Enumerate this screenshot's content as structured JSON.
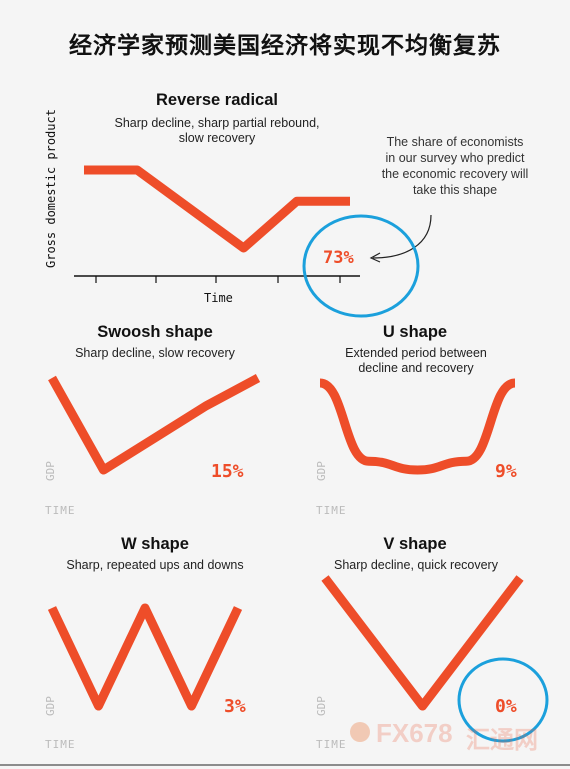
{
  "title": "经济学家预测美国经济将实现不均衡复苏",
  "colors": {
    "line": "#ee4d29",
    "highlight_circle": "#1ba0dc",
    "axis": "#111111"
  },
  "main_chart": {
    "ylabel": "Gross domestic product",
    "xlabel": "Time",
    "annotation": "The share of economists in our survey who predict the economic recovery will take this shape"
  },
  "chart_data": [
    {
      "type": "line",
      "title": "Reverse radical",
      "subtitle": "Sharp decline, sharp partial rebound, slow recovery",
      "share_percent": 73,
      "share_label": "73%",
      "highlighted": true,
      "x": [
        0,
        1,
        2,
        3,
        4,
        5
      ],
      "values": [
        100,
        100,
        90,
        80,
        92,
        92
      ]
    },
    {
      "type": "line",
      "title": "Swoosh shape",
      "subtitle": "Sharp decline, slow recovery",
      "share_percent": 15,
      "share_label": "15%",
      "x": [
        0,
        1,
        2,
        3,
        4
      ],
      "values": [
        100,
        80,
        87,
        94,
        100
      ],
      "xlabel": "TIME",
      "ylabel": "GDP"
    },
    {
      "type": "line",
      "title": "U shape",
      "subtitle": "Extended period between decline and recovery",
      "share_percent": 9,
      "share_label": "9%",
      "x": [
        0,
        1,
        2,
        3,
        4
      ],
      "values": [
        100,
        82,
        80,
        82,
        100
      ],
      "xlabel": "TIME",
      "ylabel": "GDP"
    },
    {
      "type": "line",
      "title": "W shape",
      "subtitle": "Sharp, repeated ups and downs",
      "share_percent": 3,
      "share_label": "3%",
      "x": [
        0,
        1,
        2,
        3,
        4
      ],
      "values": [
        100,
        80,
        100,
        80,
        100
      ],
      "xlabel": "TIME",
      "ylabel": "GDP"
    },
    {
      "type": "line",
      "title": "V shape",
      "subtitle": "Sharp decline, quick recovery",
      "share_percent": 0,
      "share_label": "0%",
      "highlighted": true,
      "x": [
        0,
        1,
        2
      ],
      "values": [
        100,
        80,
        100
      ],
      "xlabel": "TIME",
      "ylabel": "GDP"
    }
  ],
  "watermark": {
    "brand": "FX678",
    "cn": "汇通网"
  }
}
